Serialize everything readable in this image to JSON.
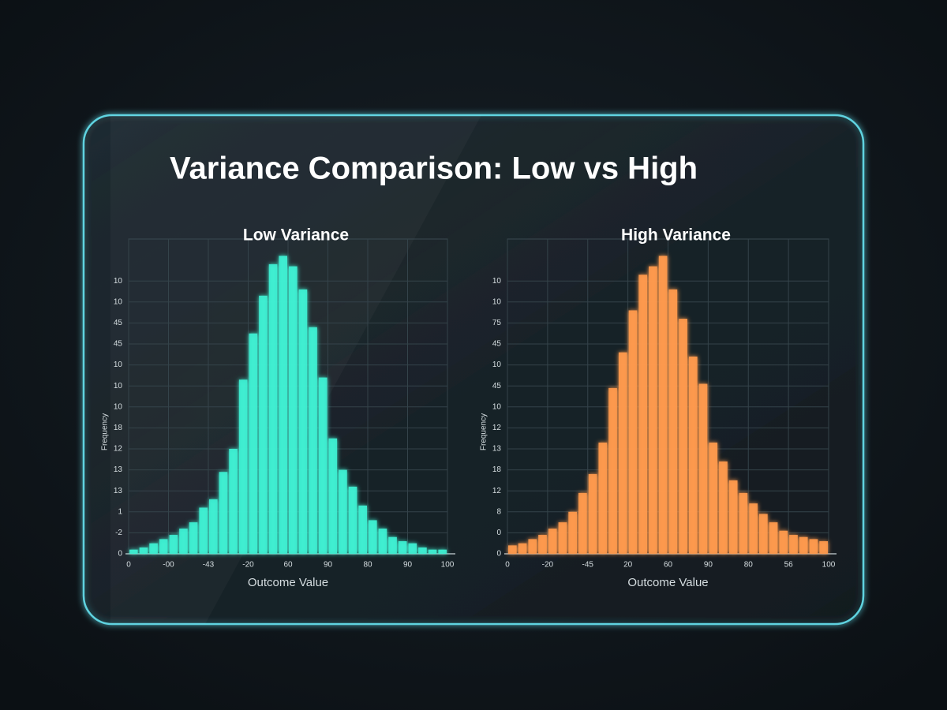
{
  "title": "Variance Comparison: Low vs High",
  "chart_data": [
    {
      "type": "histogram",
      "title": "Low Variance",
      "xlabel": "Outcome Value",
      "ylabel": "Frequency",
      "color": "#3ff0d2",
      "grid": true,
      "bins": [
        0,
        0.25,
        0.5,
        0.75,
        1,
        1.25,
        1.5,
        1.75,
        2,
        2.25,
        2.5,
        2.75,
        3,
        3.25,
        3.5,
        3.75,
        4,
        4.25,
        4.5,
        4.75,
        5,
        5.25,
        5.5,
        5.75,
        6,
        6.25,
        6.5,
        6.75,
        7,
        7.25,
        7.5,
        7.75,
        8
      ],
      "values": [
        0.2,
        0.3,
        0.5,
        0.7,
        0.9,
        1.2,
        1.5,
        2.2,
        2.6,
        3.9,
        5.0,
        8.3,
        10.5,
        12.3,
        13.8,
        14.2,
        13.7,
        12.6,
        10.8,
        8.4,
        5.5,
        4.0,
        3.2,
        2.3,
        1.6,
        1.2,
        0.8,
        0.6,
        0.5,
        0.3,
        0.2,
        0.2
      ],
      "xlim": [
        0,
        8
      ],
      "ylim": [
        0,
        15
      ],
      "xticks": [
        0,
        {
          "value": 1,
          "label": "-00"
        },
        {
          "value": 2,
          "label": "-43"
        },
        {
          "value": 3,
          "label": "-20"
        },
        {
          "value": 4,
          "label": "60"
        },
        {
          "value": 5,
          "label": "90"
        },
        {
          "value": 6,
          "label": "80"
        },
        {
          "value": 7,
          "label": "90"
        },
        {
          "value": 8,
          "label": "100"
        }
      ],
      "yticks": [
        0,
        {
          "value": 1,
          "label": "-2"
        },
        {
          "value": 2,
          "label": "1"
        },
        {
          "value": 3,
          "label": "13"
        },
        {
          "value": 4,
          "label": "13"
        },
        {
          "value": 5,
          "label": "12"
        },
        {
          "value": 6,
          "label": "18"
        },
        {
          "value": 7,
          "label": "10"
        },
        {
          "value": 8,
          "label": "10"
        },
        {
          "value": 9,
          "label": "10"
        },
        {
          "value": 10,
          "label": "45"
        },
        {
          "value": 11,
          "label": "45"
        },
        {
          "value": 12,
          "label": "10"
        },
        {
          "value": 13,
          "label": "10"
        }
      ]
    },
    {
      "type": "histogram",
      "title": "High Variance",
      "xlabel": "Outcome Value",
      "ylabel": "Frequency",
      "color": "#ff9a4d",
      "grid": true,
      "bins": [
        0,
        0.25,
        0.5,
        0.75,
        1,
        1.25,
        1.5,
        1.75,
        2,
        2.25,
        2.5,
        2.75,
        3,
        3.25,
        3.5,
        3.75,
        4,
        4.25,
        4.5,
        4.75,
        5,
        5.25,
        5.5,
        5.75,
        6,
        6.25,
        6.5,
        6.75,
        7,
        7.25,
        7.5,
        7.75,
        8
      ],
      "values": [
        0.4,
        0.5,
        0.7,
        0.9,
        1.2,
        1.5,
        2.0,
        2.9,
        3.8,
        5.3,
        7.9,
        9.6,
        11.6,
        13.3,
        13.7,
        14.2,
        12.6,
        11.2,
        9.4,
        8.1,
        5.3,
        4.4,
        3.5,
        2.9,
        2.4,
        1.9,
        1.5,
        1.1,
        0.9,
        0.8,
        0.7,
        0.6
      ],
      "xlim": [
        0,
        8
      ],
      "ylim": [
        0,
        15
      ],
      "xticks": [
        0,
        {
          "value": 1,
          "label": "-20"
        },
        {
          "value": 2,
          "label": "-45"
        },
        {
          "value": 3,
          "label": "20"
        },
        {
          "value": 4,
          "label": "60"
        },
        {
          "value": 5,
          "label": "90"
        },
        {
          "value": 6,
          "label": "80"
        },
        {
          "value": 7,
          "label": "56"
        },
        {
          "value": 8,
          "label": "100"
        }
      ],
      "yticks": [
        0,
        {
          "value": 1,
          "label": "0"
        },
        {
          "value": 2,
          "label": "8"
        },
        {
          "value": 3,
          "label": "12"
        },
        {
          "value": 4,
          "label": "18"
        },
        {
          "value": 5,
          "label": "13"
        },
        {
          "value": 6,
          "label": "12"
        },
        {
          "value": 7,
          "label": "10"
        },
        {
          "value": 8,
          "label": "45"
        },
        {
          "value": 9,
          "label": "10"
        },
        {
          "value": 10,
          "label": "45"
        },
        {
          "value": 11,
          "label": "75"
        },
        {
          "value": 12,
          "label": "10"
        },
        {
          "value": 13,
          "label": "10"
        }
      ]
    }
  ]
}
